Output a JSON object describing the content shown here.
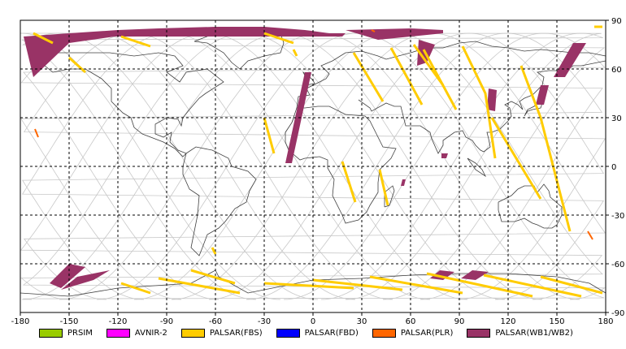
{
  "map": {
    "lon_range": [
      -180,
      180
    ],
    "lat_range": [
      -90,
      90
    ],
    "lon_ticks": [
      -180,
      -150,
      -120,
      -90,
      -60,
      -30,
      0,
      30,
      60,
      90,
      120,
      150,
      180
    ],
    "lat_ticks": [
      90,
      60,
      30,
      0,
      -30,
      -60,
      -90
    ],
    "grid": "dashed",
    "background": "#ffffff"
  },
  "legend": [
    {
      "label": "PRSIM",
      "color": "#99cc00"
    },
    {
      "label": "AVNIR-2",
      "color": "#ff00ff"
    },
    {
      "label": "PALSAR(FBS)",
      "color": "#ffcc00"
    },
    {
      "label": "PALSAR(FBD)",
      "color": "#0000ff"
    },
    {
      "label": "PALSAR(PLR)",
      "color": "#ff6600"
    },
    {
      "label": "PALSAR(WB1/WB2)",
      "color": "#993366"
    }
  ],
  "orbit_tracks": {
    "color": "#c8c8c8",
    "start_longitudes": [
      -180,
      -157,
      -134,
      -111,
      -88,
      -65,
      -42,
      -19,
      4,
      27,
      50,
      73,
      96,
      119,
      142,
      165
    ]
  },
  "observation_swaths": {
    "wb": [
      {
        "lon": [
          -178,
          -150,
          -120,
          -95,
          -95,
          -122,
          -150,
          -172
        ],
        "lat": [
          80,
          82,
          84,
          85,
          80,
          80,
          76,
          55
        ]
      },
      {
        "lon": [
          -95,
          -60,
          -30,
          -5,
          10,
          20,
          18,
          -10,
          -40,
          -95
        ],
        "lat": [
          85,
          86,
          86,
          84,
          82,
          82,
          80,
          80,
          80,
          80
        ]
      },
      {
        "lon": [
          20,
          60,
          80,
          80,
          60,
          40
        ],
        "lat": [
          84,
          85,
          84,
          82,
          80,
          78
        ]
      },
      {
        "lon": [
          65,
          75,
          70,
          64
        ],
        "lat": [
          78,
          75,
          64,
          62
        ]
      },
      {
        "lon": [
          -5,
          -1,
          -13,
          -17
        ],
        "lat": [
          58,
          58,
          2,
          2
        ]
      },
      {
        "lon": [
          -150,
          -140,
          -155,
          -162
        ],
        "lat": [
          -60,
          -62,
          -75,
          -72
        ]
      },
      {
        "lon": [
          -145,
          -125,
          -135,
          -155
        ],
        "lat": [
          -68,
          -64,
          -70,
          -76
        ]
      },
      {
        "lon": [
          78,
          87,
          80,
          72
        ],
        "lat": [
          -64,
          -65,
          -70,
          -69
        ]
      },
      {
        "lon": [
          98,
          108,
          100,
          91
        ],
        "lat": [
          -64,
          -65,
          -70,
          -69
        ]
      },
      {
        "lon": [
          160,
          168,
          155,
          148
        ],
        "lat": [
          76,
          76,
          55,
          55
        ]
      },
      {
        "lon": [
          108,
          113,
          112,
          107
        ],
        "lat": [
          48,
          47,
          34,
          35
        ]
      },
      {
        "lon": [
          140,
          145,
          142,
          137
        ],
        "lat": [
          50,
          50,
          38,
          38
        ]
      },
      {
        "lon": [
          79,
          83,
          82,
          79
        ],
        "lat": [
          8,
          8,
          5,
          5
        ]
      },
      {
        "lon": [
          55,
          57,
          56,
          54
        ],
        "lat": [
          -8,
          -8,
          -12,
          -12
        ]
      }
    ],
    "fbs": [
      {
        "lon": [
          -172,
          -160
        ],
        "lat": [
          82,
          76
        ]
      },
      {
        "lon": [
          -150,
          -140
        ],
        "lat": [
          67,
          58
        ]
      },
      {
        "lon": [
          -118,
          -100
        ],
        "lat": [
          80,
          74
        ]
      },
      {
        "lon": [
          -30,
          -12
        ],
        "lat": [
          82,
          76
        ]
      },
      {
        "lon": [
          -12,
          -10
        ],
        "lat": [
          72,
          68
        ]
      },
      {
        "lon": [
          25,
          43
        ],
        "lat": [
          70,
          40
        ]
      },
      {
        "lon": [
          62,
          80
        ],
        "lat": [
          75,
          50
        ]
      },
      {
        "lon": [
          48,
          67
        ],
        "lat": [
          73,
          38
        ]
      },
      {
        "lon": [
          68,
          88
        ],
        "lat": [
          72,
          35
        ]
      },
      {
        "lon": [
          92,
          106,
          112
        ],
        "lat": [
          74,
          45,
          5
        ]
      },
      {
        "lon": [
          128,
          140,
          158
        ],
        "lat": [
          62,
          30,
          -40
        ]
      },
      {
        "lon": [
          110,
          140
        ],
        "lat": [
          30,
          -20
        ]
      },
      {
        "lon": [
          -30,
          -24
        ],
        "lat": [
          30,
          8
        ]
      },
      {
        "lon": [
          18,
          26
        ],
        "lat": [
          3,
          -22
        ]
      },
      {
        "lon": [
          41,
          46
        ],
        "lat": [
          -2,
          -24
        ]
      },
      {
        "lon": [
          -118,
          -100
        ],
        "lat": [
          -72,
          -78
        ]
      },
      {
        "lon": [
          -95,
          -45
        ],
        "lat": [
          -69,
          -78
        ]
      },
      {
        "lon": [
          -75,
          -48
        ],
        "lat": [
          -64,
          -72
        ]
      },
      {
        "lon": [
          -30,
          25
        ],
        "lat": [
          -72,
          -75
        ]
      },
      {
        "lon": [
          0,
          55
        ],
        "lat": [
          -70,
          -76
        ]
      },
      {
        "lon": [
          35,
          92
        ],
        "lat": [
          -68,
          -78
        ]
      },
      {
        "lon": [
          70,
          135
        ],
        "lat": [
          -66,
          -80
        ]
      },
      {
        "lon": [
          105,
          165
        ],
        "lat": [
          -67,
          -80
        ]
      },
      {
        "lon": [
          140,
          178
        ],
        "lat": [
          -68,
          -78
        ]
      },
      {
        "lon": [
          173,
          178
        ],
        "lat": [
          86,
          86
        ]
      },
      {
        "lon": [
          -62,
          -60
        ],
        "lat": [
          -50,
          -54
        ]
      }
    ],
    "plr": [
      {
        "lon": [
          -171,
          -169
        ],
        "lat": [
          23,
          18
        ]
      },
      {
        "lon": [
          169,
          172
        ],
        "lat": [
          -40,
          -45
        ]
      },
      {
        "lon": [
          36,
          38
        ],
        "lat": [
          84,
          83
        ]
      }
    ]
  }
}
